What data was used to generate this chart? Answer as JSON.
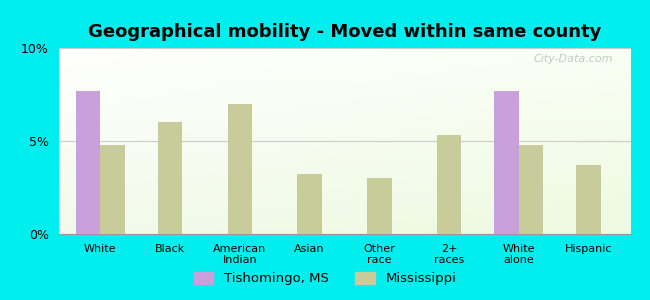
{
  "title": "Geographical mobility - Moved within same county",
  "categories": [
    "White",
    "Black",
    "American\nIndian",
    "Asian",
    "Other\nrace",
    "2+\nraces",
    "White\nalone",
    "Hispanic"
  ],
  "tishomingo": [
    7.7,
    0,
    0,
    0,
    0,
    0,
    7.7,
    0
  ],
  "mississippi": [
    4.8,
    6.0,
    7.0,
    3.2,
    3.0,
    5.3,
    4.8,
    3.7
  ],
  "tishomingo_color": "#c9a0dc",
  "mississippi_color": "#c8cc9a",
  "background_color": "#00eeee",
  "ylim": [
    0,
    10
  ],
  "yticks": [
    0,
    5,
    10
  ],
  "ytick_labels": [
    "0%",
    "5%",
    "10%"
  ],
  "legend_tishomingo": "Tishomingo, MS",
  "legend_mississippi": "Mississippi",
  "bar_width": 0.35,
  "title_fontsize": 13,
  "watermark": "City-Data.com"
}
